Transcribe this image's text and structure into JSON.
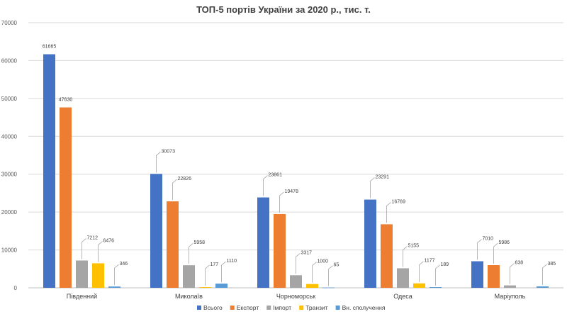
{
  "chart_data": {
    "type": "bar",
    "title": "ТОП-5 портів України за 2020 р., тис. т.",
    "categories": [
      "Південний",
      "Миколаїв",
      "Чорноморськ",
      "Одеса",
      "Маріуполь"
    ],
    "series": [
      {
        "name": "Всього",
        "color": "#4472C4",
        "values": [
          61665,
          30073,
          23861,
          23291,
          7010
        ]
      },
      {
        "name": "Експорт",
        "color": "#ED7D31",
        "values": [
          47630,
          22826,
          19478,
          16769,
          5986
        ]
      },
      {
        "name": "Імпорт",
        "color": "#A5A5A5",
        "values": [
          7212,
          5958,
          3317,
          5155,
          638
        ]
      },
      {
        "name": "Транзит",
        "color": "#FFC000",
        "values": [
          6476,
          177,
          1000,
          1177,
          null
        ]
      },
      {
        "name": "Вн. сполучення",
        "color": "#5B9BD5",
        "values": [
          346,
          1110,
          65,
          189,
          385
        ]
      }
    ],
    "ylim": [
      0,
      70000
    ],
    "yticks": [
      0,
      10000,
      20000,
      30000,
      40000,
      50000,
      60000,
      70000
    ],
    "grid": true,
    "legend": "bottom"
  }
}
